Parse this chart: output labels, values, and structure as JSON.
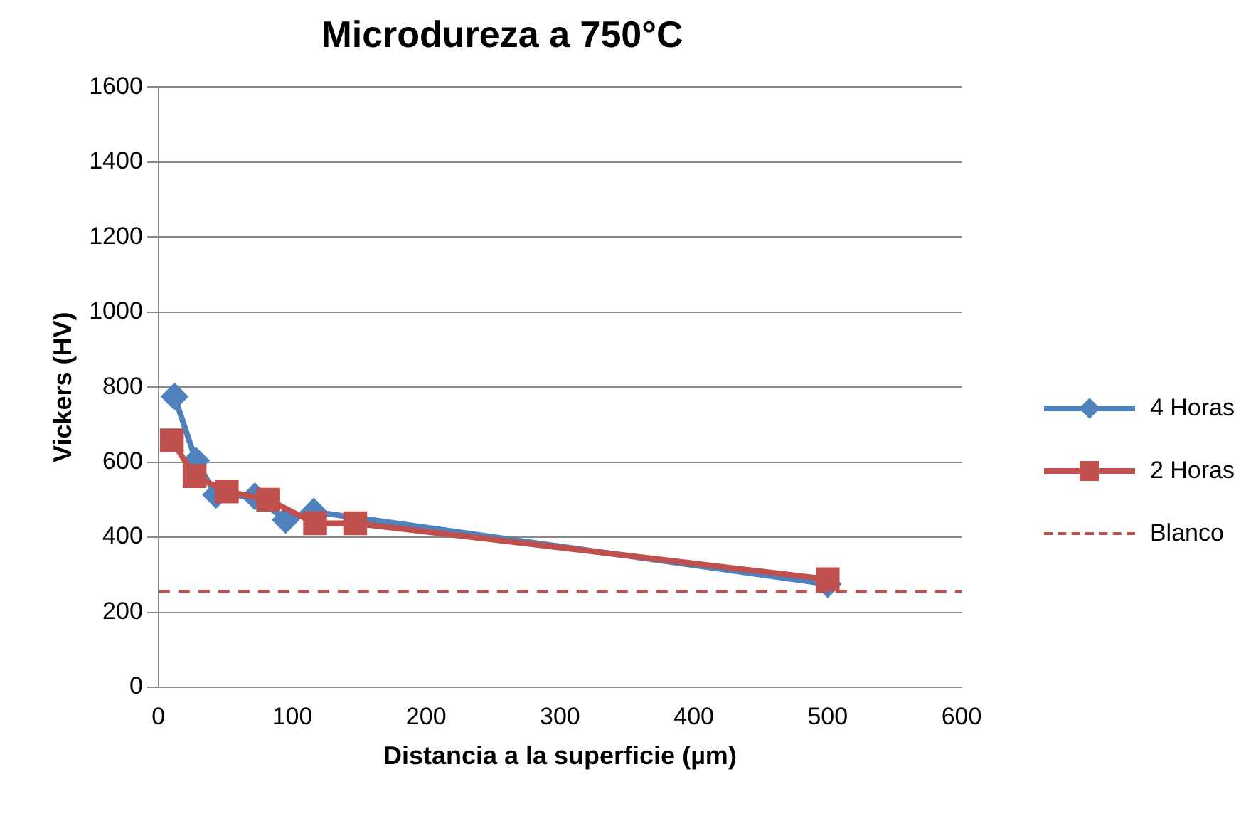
{
  "chart_data": {
    "type": "line",
    "title": "Microdureza a 750°C",
    "xlabel": "Distancia a la superficie (µm)",
    "ylabel": "Vickers (HV)",
    "xlim": [
      0,
      600
    ],
    "xticks": [
      0,
      100,
      200,
      300,
      400,
      500,
      600
    ],
    "ylim": [
      0,
      1600
    ],
    "yticks": [
      0,
      200,
      400,
      600,
      800,
      1000,
      1200,
      1400,
      1600
    ],
    "grid": "y",
    "legend": "right",
    "series": [
      {
        "name": "4 Horas",
        "color": "#4f81bd",
        "marker": "diamond",
        "line_style": "solid",
        "x": [
          12,
          28,
          43,
          72,
          95,
          116,
          500
        ],
        "values": [
          775,
          604,
          513,
          509,
          446,
          468,
          275
        ]
      },
      {
        "name": "2 Horas",
        "color": "#c0504d",
        "marker": "square",
        "line_style": "solid",
        "x": [
          10,
          27,
          51,
          82,
          117,
          147,
          500
        ],
        "values": [
          658,
          563,
          522,
          500,
          437,
          437,
          288
        ]
      },
      {
        "name": "Blanco",
        "color": "#c0504d",
        "marker": "none",
        "line_style": "dashed",
        "x": [
          0,
          600
        ],
        "values": [
          255,
          255
        ]
      }
    ]
  }
}
